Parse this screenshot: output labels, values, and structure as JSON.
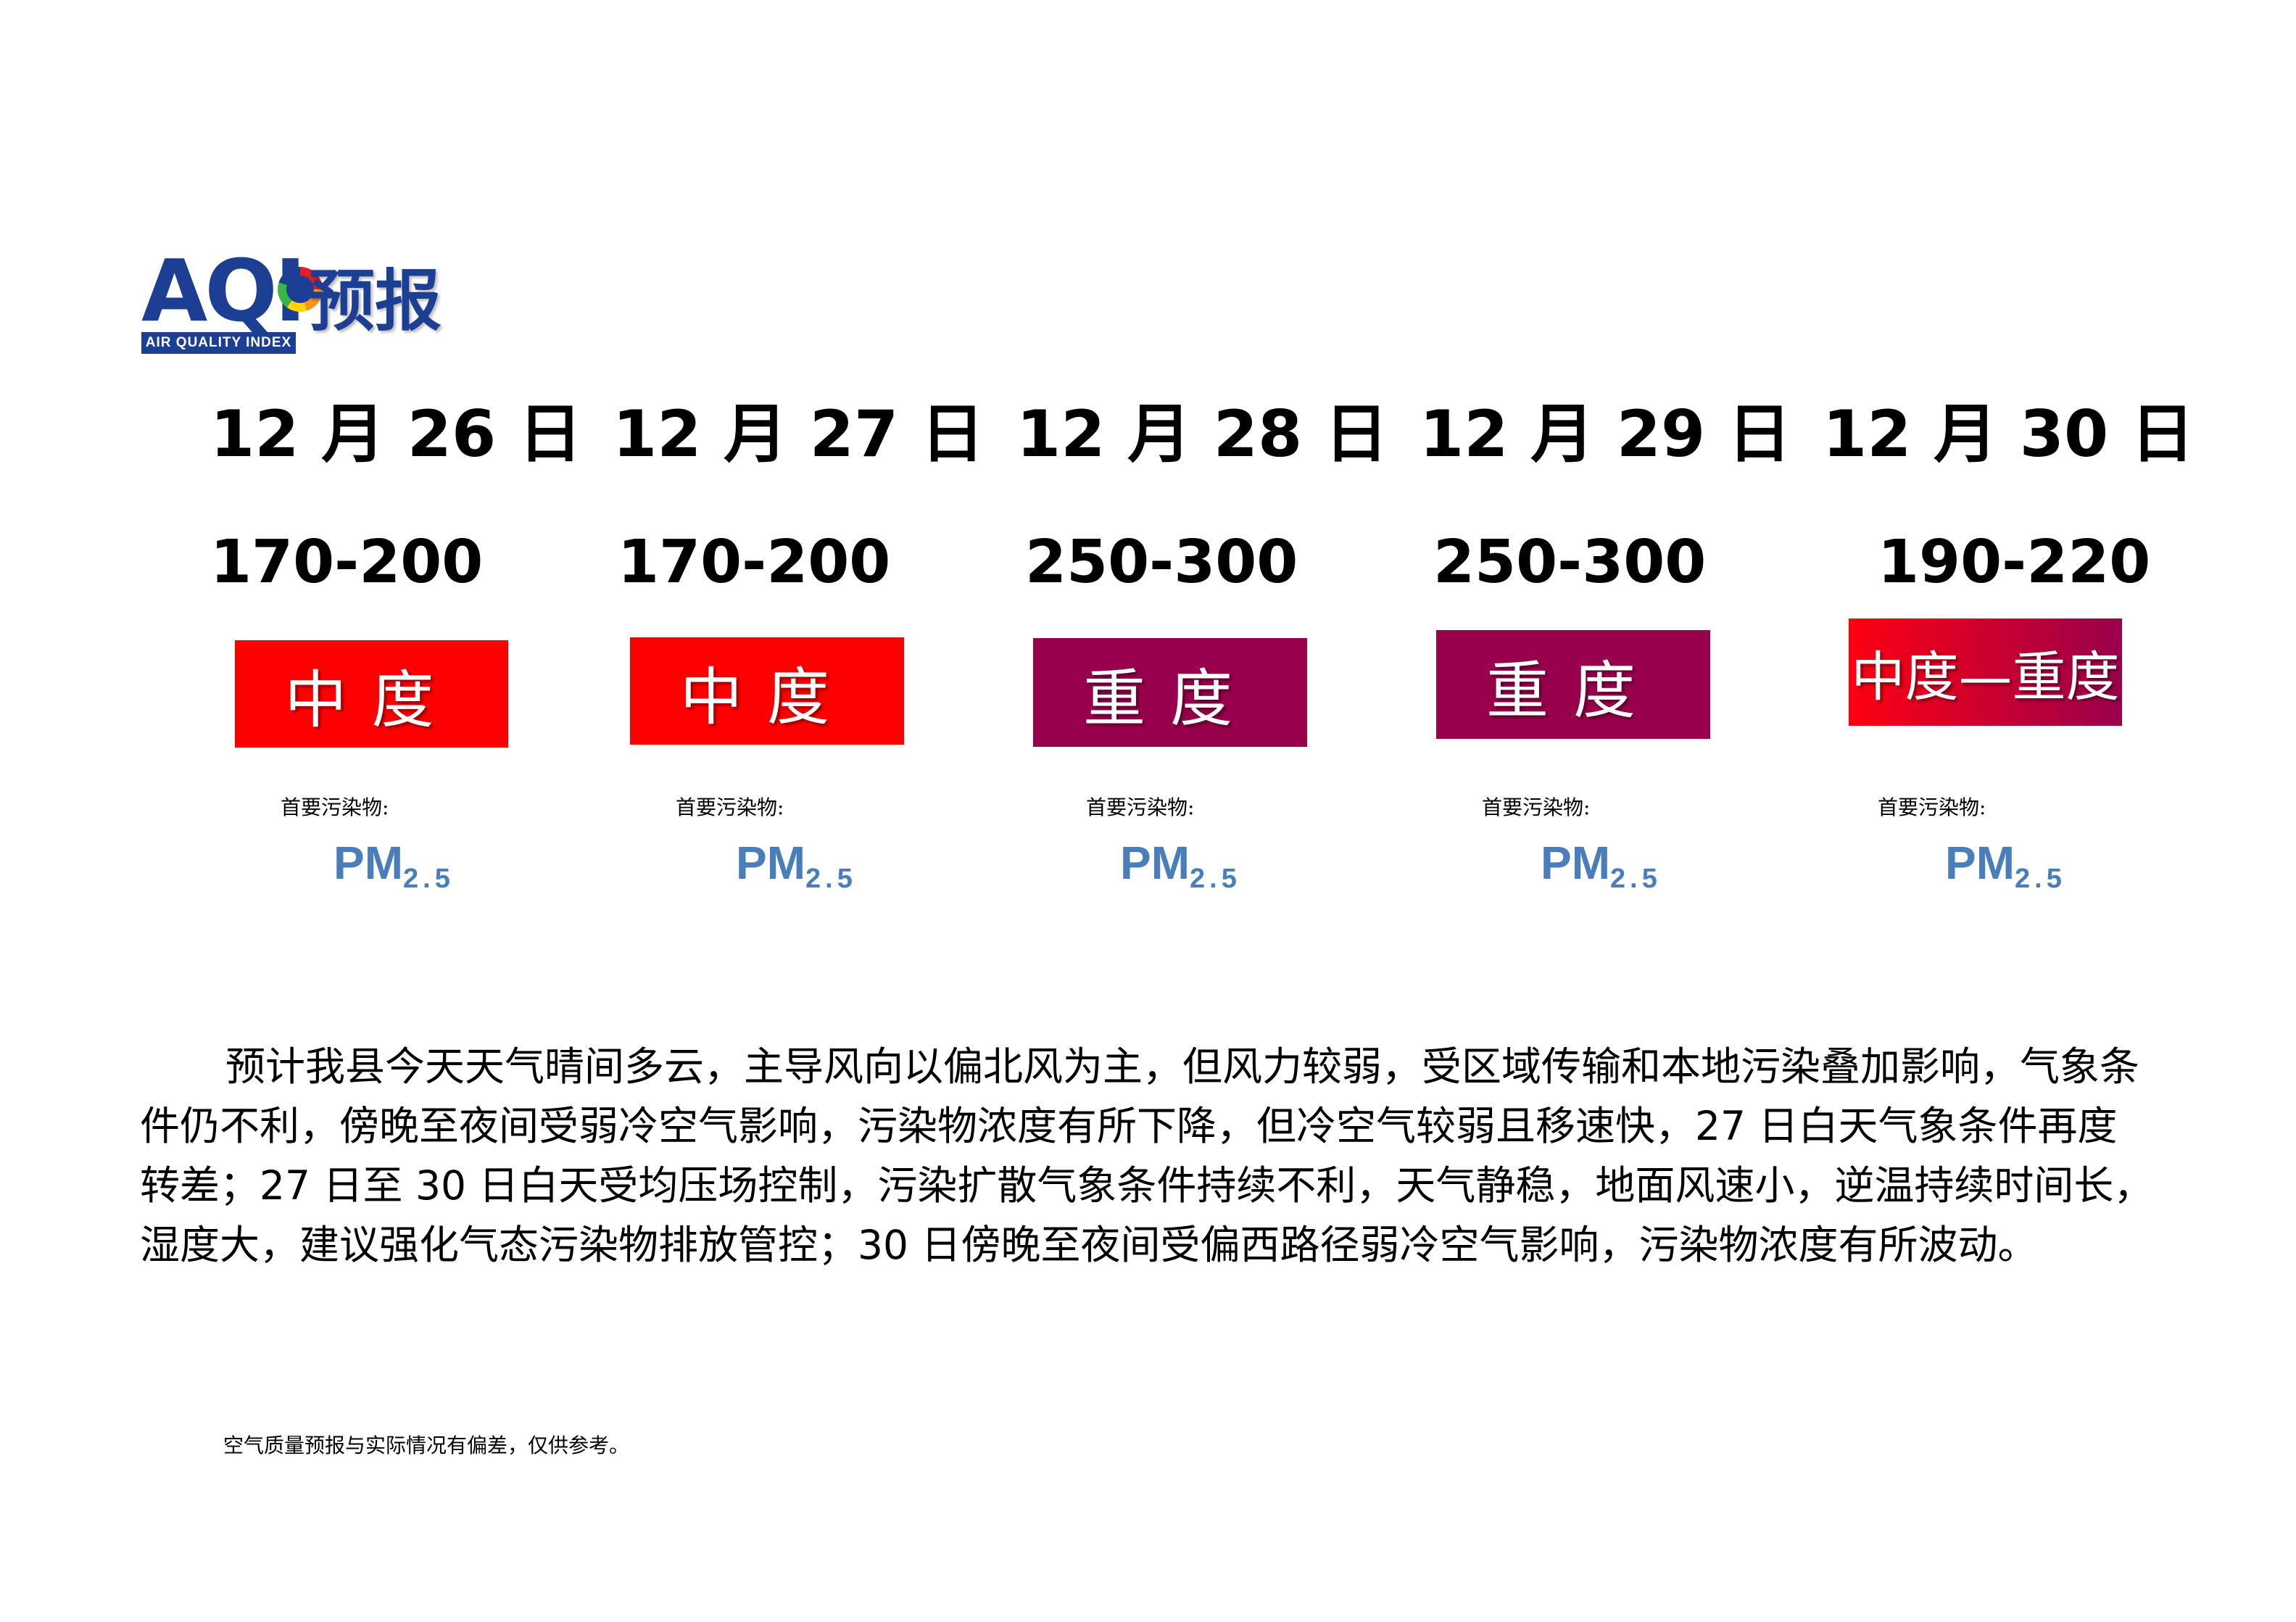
{
  "header": {
    "logo_text": "AQI",
    "logo_band": "AIR QUALITY INDEX",
    "title": "预报"
  },
  "days": [
    {
      "date": "12 月 26 日",
      "range": "170-200",
      "level": "中度",
      "pollutant_label": "首要污染物:",
      "pollutant": "PM",
      "pollutant_sub": "2.5",
      "level_color": "#ff0000"
    },
    {
      "date": "12 月 27 日",
      "range": "170-200",
      "level": "中度",
      "pollutant_label": "首要污染物:",
      "pollutant": "PM",
      "pollutant_sub": "2.5",
      "level_color": "#ff0000"
    },
    {
      "date": "12 月 28 日",
      "range": "250-300",
      "level": "重度",
      "pollutant_label": "首要污染物:",
      "pollutant": "PM",
      "pollutant_sub": "2.5",
      "level_color": "#99004c"
    },
    {
      "date": "12 月 29 日",
      "range": "250-300",
      "level": "重度",
      "pollutant_label": "首要污染物:",
      "pollutant": "PM",
      "pollutant_sub": "2.5",
      "level_color": "#99004c"
    },
    {
      "date": "12 月 30 日",
      "range": "190-220",
      "level": "中度—重度",
      "pollutant_label": "首要污染物:",
      "pollutant": "PM",
      "pollutant_sub": "2.5",
      "level_color": "#ff0000"
    }
  ],
  "paragraph": "预计我县今天天气晴间多云，主导风向以偏北风为主，但风力较弱，受区域传输和本地污染叠加影响，气象条件仍不利，傍晚至夜间受弱冷空气影响，污染物浓度有所下降，但冷空气较弱且移速快，27 日白天气象条件再度转差；27 日至 30 日白天受均压场控制，污染扩散气象条件持续不利，天气静稳，地面风速小，逆温持续时间长，湿度大，建议强化气态污染物排放管控；30 日傍晚至夜间受偏西路径弱冷空气影响，污染物浓度有所波动。",
  "footnote": "空气质量预报与实际情况有偏差，仅供参考。"
}
